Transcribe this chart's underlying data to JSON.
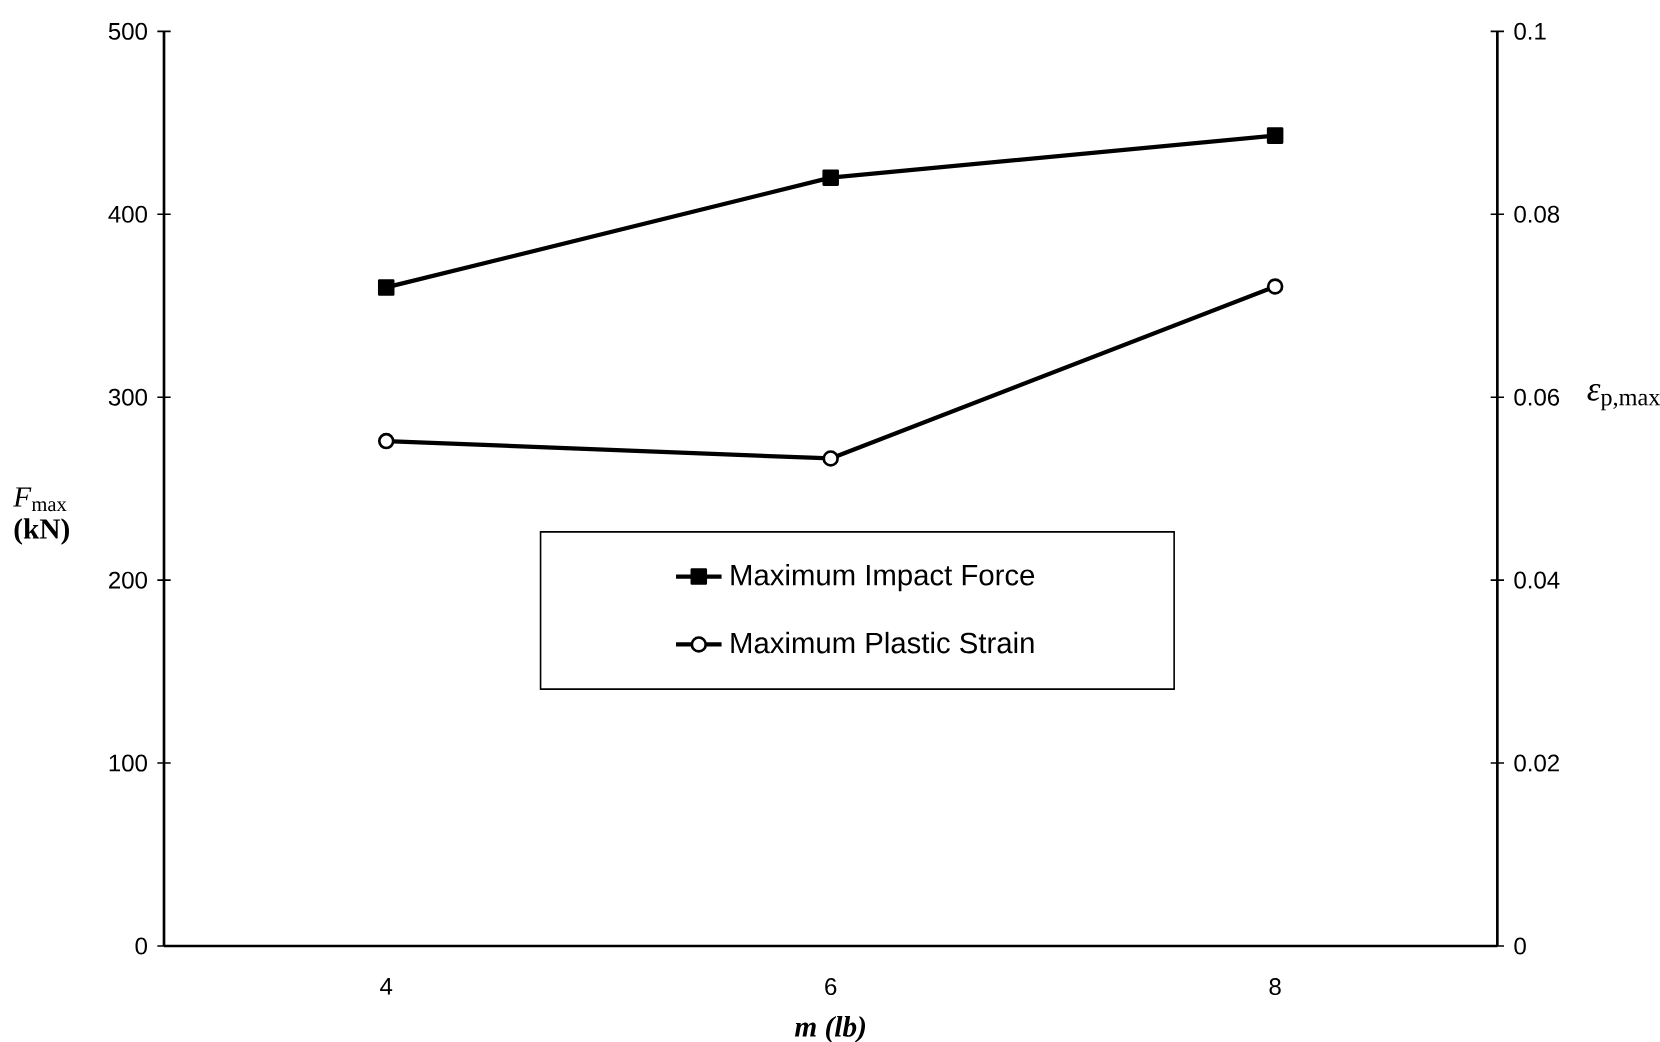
{
  "chart_data": {
    "type": "line",
    "xlabel": "m (lb)",
    "ylabel": "*F*$_{max}$ **(kN)**",
    "y2label": "*ε*$_{p,max}$",
    "categories": [
      "4",
      "6",
      "8"
    ],
    "series": [
      {
        "name": "Maximum Impact Force",
        "color": "#000000",
        "marker": "square",
        "values": [
          360,
          420,
          443
        ]
      },
      {
        "name": "Maximum Plastic Strain",
        "color": "#000000",
        "marker": "circle",
        "axis": "y2",
        "values": [
          0.0552,
          0.0533,
          0.0721
        ]
      }
    ],
    "ylim": [
      0,
      500
    ],
    "yticks": [
      0,
      100,
      200,
      300,
      400,
      500
    ],
    "y2lim": [
      0,
      0.1
    ],
    "y2ticks": [
      0,
      0.02,
      0.04,
      0.06,
      0.08,
      0.1
    ],
    "legend": "bottom",
    "grid": false,
    "line_style": "solid"
  }
}
